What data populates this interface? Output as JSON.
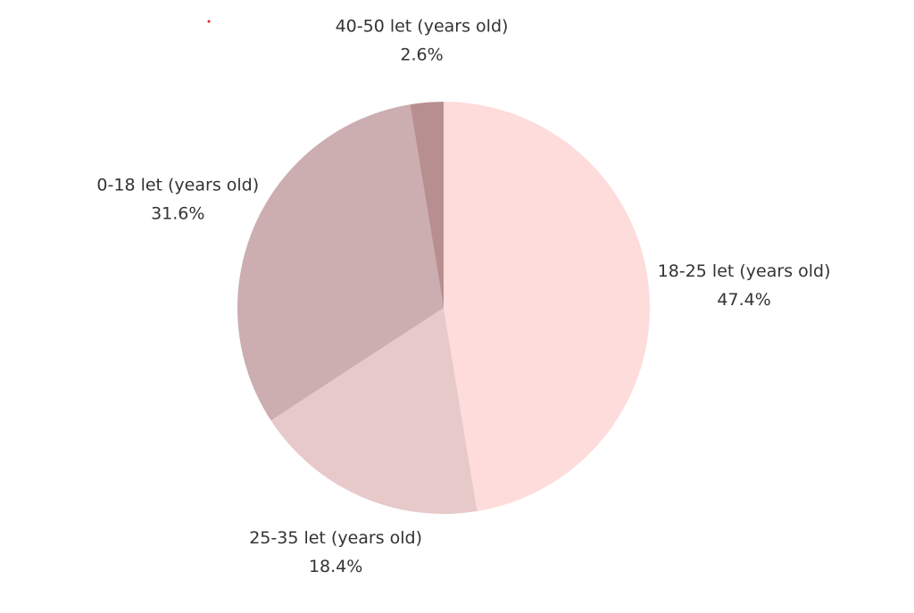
{
  "chart_data": {
    "type": "pie",
    "categories": [
      "18-25 let (years old)",
      "25-35 let (years old)",
      "0-18 let (years old)",
      "40-50 let (years old)"
    ],
    "values": [
      47.4,
      18.4,
      31.6,
      2.6
    ],
    "value_labels": [
      "47.4%",
      "18.4%",
      "31.6%",
      "2.6%"
    ],
    "colors": [
      "#fddcdb",
      "#e8c9ca",
      "#ccadb0",
      "#b88f91"
    ]
  }
}
